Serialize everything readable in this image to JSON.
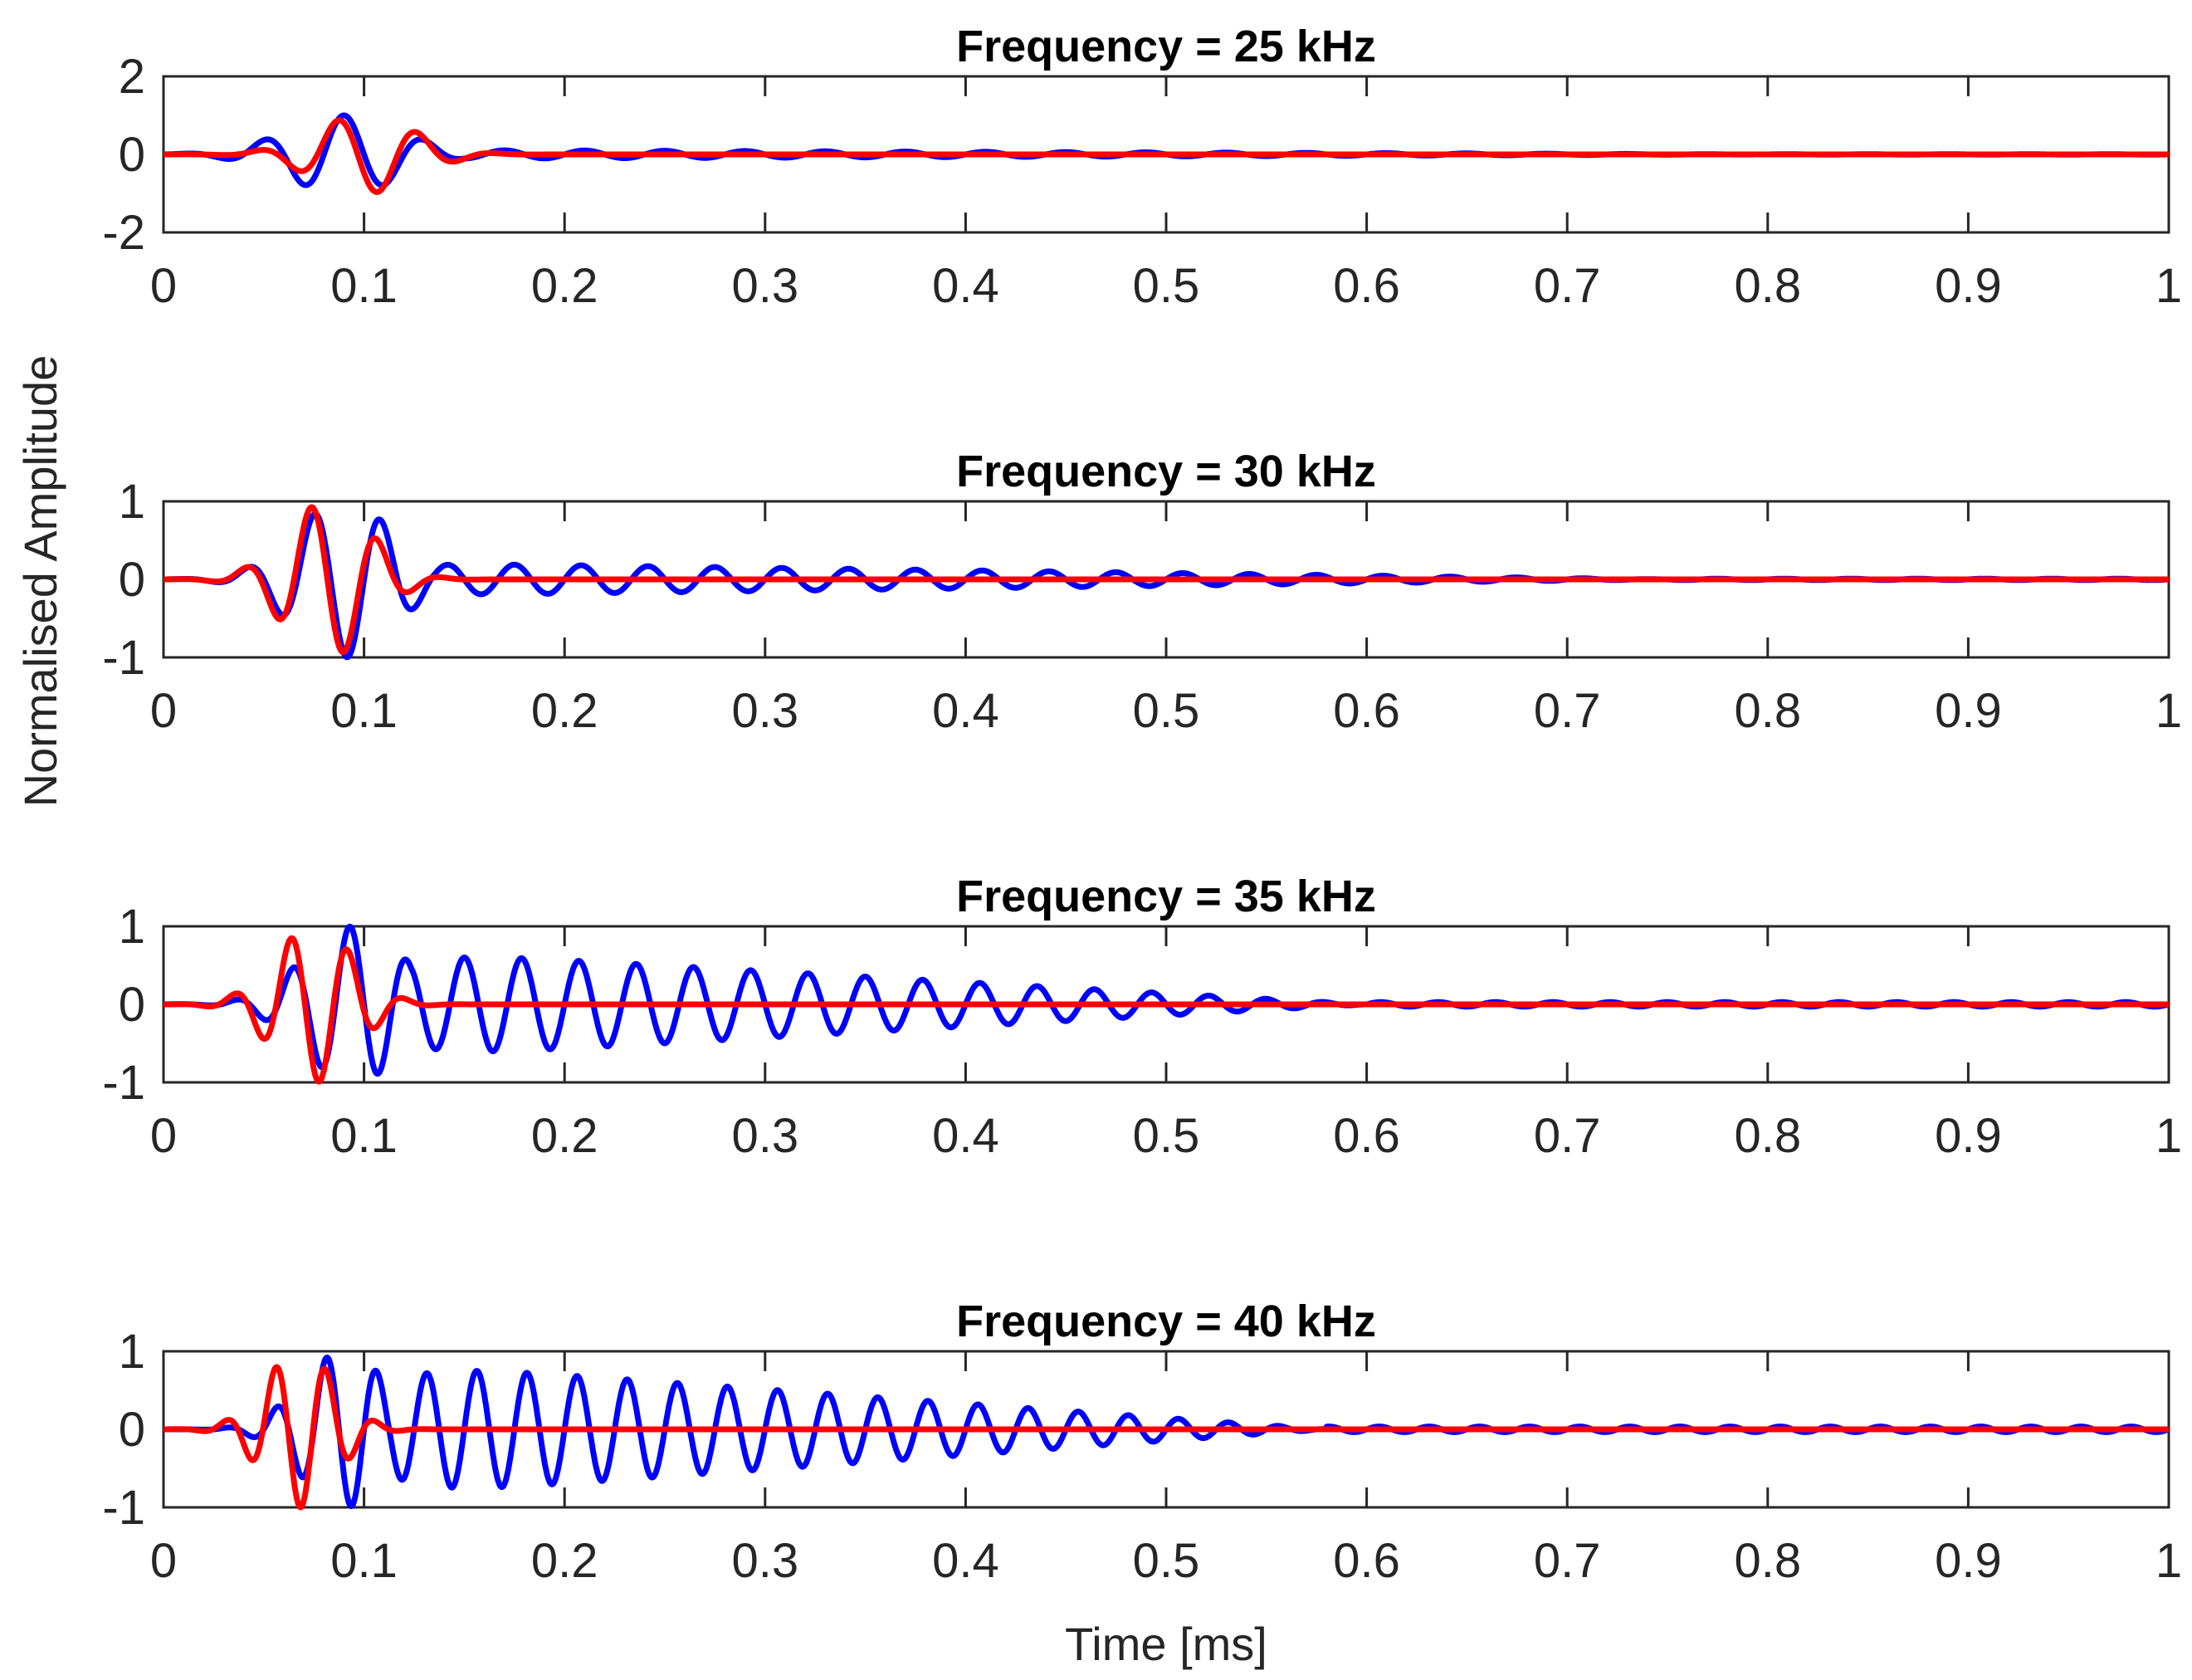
{
  "figure": {
    "ylabel": "Normalised Amplitude",
    "xlabel": "Time [ms]"
  },
  "chart_data": [
    {
      "type": "line",
      "title": "Frequency = 25 kHz",
      "xlim": [
        0,
        1
      ],
      "ylim": [
        -2,
        2
      ],
      "xticks": [
        0,
        0.1,
        0.2,
        0.3,
        0.4,
        0.5,
        0.6,
        0.7,
        0.8,
        0.9,
        1
      ],
      "xticklabels": [
        "0",
        "0.1",
        "0.2",
        "0.3",
        "0.4",
        "0.5",
        "0.6",
        "0.7",
        "0.8",
        "0.9",
        "1"
      ],
      "yticks": [
        -2,
        0,
        2
      ],
      "yticklabels": [
        "-2",
        "0",
        "2"
      ],
      "series": [
        {
          "name": "blue",
          "color": "#0000ff",
          "freq_khz": 25,
          "burst_center_ms": 0.09,
          "burst_width_ms": 0.04,
          "peak": 1.0,
          "tail_amp": 0.12,
          "tail_end_ms": 0.8,
          "phase": 0
        },
        {
          "name": "red",
          "color": "#ff0000",
          "freq_khz": 25,
          "burst_center_ms": 0.1,
          "burst_width_ms": 0.035,
          "peak": 1.0,
          "tail_amp": 0,
          "tail_end_ms": 0,
          "phase": 0.5
        }
      ]
    },
    {
      "type": "line",
      "title": "Frequency = 30 kHz",
      "xlim": [
        0,
        1
      ],
      "ylim": [
        -1,
        1
      ],
      "xticks": [
        0,
        0.1,
        0.2,
        0.3,
        0.4,
        0.5,
        0.6,
        0.7,
        0.8,
        0.9,
        1
      ],
      "xticklabels": [
        "0",
        "0.1",
        "0.2",
        "0.3",
        "0.4",
        "0.5",
        "0.6",
        "0.7",
        "0.8",
        "0.9",
        "1"
      ],
      "yticks": [
        -1,
        0,
        1
      ],
      "yticklabels": [
        "-1",
        "0",
        "1"
      ],
      "series": [
        {
          "name": "blue",
          "color": "#0000ff",
          "freq_khz": 30,
          "burst_center_ms": 0.09,
          "burst_width_ms": 0.035,
          "peak": 1.0,
          "tail_amp": 0.22,
          "tail_end_ms": 0.75,
          "phase": 0
        },
        {
          "name": "red",
          "color": "#ff0000",
          "freq_khz": 30,
          "burst_center_ms": 0.082,
          "burst_width_ms": 0.03,
          "peak": 1.0,
          "tail_amp": 0,
          "tail_end_ms": 0,
          "phase": 0.3
        }
      ]
    },
    {
      "type": "line",
      "title": "Frequency = 35 kHz",
      "xlim": [
        0,
        1
      ],
      "ylim": [
        -1,
        1
      ],
      "xticks": [
        0,
        0.1,
        0.2,
        0.3,
        0.4,
        0.5,
        0.6,
        0.7,
        0.8,
        0.9,
        1
      ],
      "xticklabels": [
        "0",
        "0.1",
        "0.2",
        "0.3",
        "0.4",
        "0.5",
        "0.6",
        "0.7",
        "0.8",
        "0.9",
        "1"
      ],
      "yticks": [
        -1,
        0,
        1
      ],
      "yticklabels": [
        "-1",
        "0",
        "1"
      ],
      "series": [
        {
          "name": "blue",
          "color": "#0000ff",
          "freq_khz": 35,
          "burst_center_ms": 0.095,
          "burst_width_ms": 0.035,
          "peak": 1.0,
          "tail_amp": 0.72,
          "tail_end_ms": 0.6,
          "phase": 0
        },
        {
          "name": "red",
          "color": "#ff0000",
          "freq_khz": 35,
          "burst_center_ms": 0.075,
          "burst_width_ms": 0.028,
          "peak": 1.0,
          "tail_amp": 0,
          "tail_end_ms": 0,
          "phase": 0.2
        }
      ]
    },
    {
      "type": "line",
      "title": "Frequency = 40 kHz",
      "xlim": [
        0,
        1
      ],
      "ylim": [
        -1,
        1
      ],
      "xticks": [
        0,
        0.1,
        0.2,
        0.3,
        0.4,
        0.5,
        0.6,
        0.7,
        0.8,
        0.9,
        1
      ],
      "xticklabels": [
        "0",
        "0.1",
        "0.2",
        "0.3",
        "0.4",
        "0.5",
        "0.6",
        "0.7",
        "0.8",
        "0.9",
        "1"
      ],
      "yticks": [
        -1,
        0,
        1
      ],
      "yticklabels": [
        "-1",
        "0",
        "1"
      ],
      "series": [
        {
          "name": "blue",
          "color": "#0000ff",
          "freq_khz": 40,
          "burst_center_ms": 0.09,
          "burst_width_ms": 0.03,
          "peak": 1.0,
          "tail_amp": 0.9,
          "tail_end_ms": 0.58,
          "phase": 0
        },
        {
          "name": "red",
          "color": "#ff0000",
          "freq_khz": 40,
          "burst_center_ms": 0.068,
          "burst_width_ms": 0.025,
          "peak": 1.0,
          "tail_amp": 0,
          "tail_end_ms": 0,
          "phase": 0.1
        }
      ]
    }
  ]
}
